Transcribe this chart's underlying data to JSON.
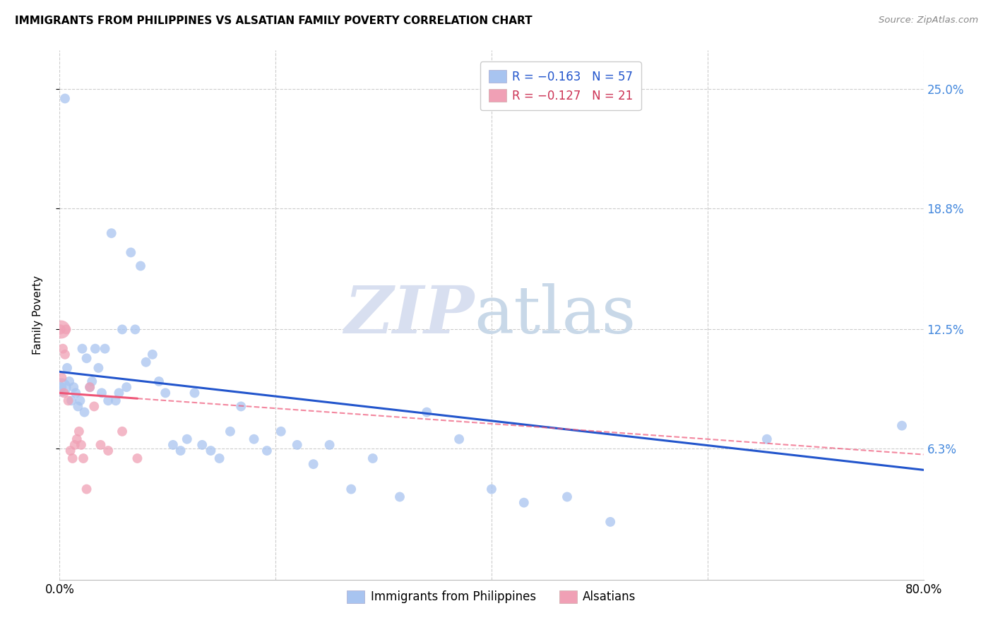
{
  "title": "IMMIGRANTS FROM PHILIPPINES VS ALSATIAN FAMILY POVERTY CORRELATION CHART",
  "source": "Source: ZipAtlas.com",
  "ylabel": "Family Poverty",
  "ytick_labels": [
    "6.3%",
    "12.5%",
    "18.8%",
    "25.0%"
  ],
  "ytick_values": [
    0.063,
    0.125,
    0.188,
    0.25
  ],
  "xlim": [
    0.0,
    0.8
  ],
  "ylim": [
    -0.005,
    0.27
  ],
  "legend_top_labels": [
    "R = −0.163   N = 57",
    "R = −0.127   N = 21"
  ],
  "legend_bottom_labels": [
    "Immigrants from Philippines",
    "Alsatians"
  ],
  "blue_scatter_color": "#a8c4f0",
  "pink_scatter_color": "#f0a0b5",
  "blue_line_color": "#2255cc",
  "pink_line_color": "#ee5577",
  "blue_line": {
    "x0": 0.0,
    "y0": 0.103,
    "x1": 0.8,
    "y1": 0.052
  },
  "pink_line": {
    "x0": 0.0,
    "y0": 0.092,
    "x1": 0.8,
    "y1": 0.06
  },
  "blue_scatter_x": [
    0.002,
    0.005,
    0.007,
    0.009,
    0.011,
    0.013,
    0.015,
    0.017,
    0.019,
    0.021,
    0.023,
    0.025,
    0.028,
    0.03,
    0.033,
    0.036,
    0.039,
    0.042,
    0.045,
    0.048,
    0.052,
    0.055,
    0.058,
    0.062,
    0.066,
    0.07,
    0.075,
    0.08,
    0.086,
    0.092,
    0.098,
    0.105,
    0.112,
    0.118,
    0.125,
    0.132,
    0.14,
    0.148,
    0.158,
    0.168,
    0.18,
    0.192,
    0.205,
    0.22,
    0.235,
    0.25,
    0.27,
    0.29,
    0.315,
    0.34,
    0.37,
    0.4,
    0.43,
    0.47,
    0.51,
    0.655,
    0.78
  ],
  "blue_scatter_y": [
    0.095,
    0.245,
    0.105,
    0.098,
    0.088,
    0.095,
    0.092,
    0.085,
    0.088,
    0.115,
    0.082,
    0.11,
    0.095,
    0.098,
    0.115,
    0.105,
    0.092,
    0.115,
    0.088,
    0.175,
    0.088,
    0.092,
    0.125,
    0.095,
    0.165,
    0.125,
    0.158,
    0.108,
    0.112,
    0.098,
    0.092,
    0.065,
    0.062,
    0.068,
    0.092,
    0.065,
    0.062,
    0.058,
    0.072,
    0.085,
    0.068,
    0.062,
    0.072,
    0.065,
    0.055,
    0.065,
    0.042,
    0.058,
    0.038,
    0.082,
    0.068,
    0.042,
    0.035,
    0.038,
    0.025,
    0.068,
    0.075
  ],
  "pink_scatter_x": [
    0.001,
    0.002,
    0.003,
    0.004,
    0.005,
    0.006,
    0.008,
    0.01,
    0.012,
    0.014,
    0.016,
    0.018,
    0.02,
    0.022,
    0.025,
    0.028,
    0.032,
    0.038,
    0.045,
    0.058,
    0.072
  ],
  "pink_scatter_y": [
    0.125,
    0.1,
    0.115,
    0.092,
    0.112,
    0.125,
    0.088,
    0.062,
    0.058,
    0.065,
    0.068,
    0.072,
    0.065,
    0.058,
    0.042,
    0.095,
    0.085,
    0.065,
    0.062,
    0.072,
    0.058
  ],
  "pink_scatter_sizes": [
    200,
    80,
    80,
    80,
    80,
    80,
    80,
    80,
    80,
    80,
    80,
    80,
    80,
    80,
    80,
    80,
    80,
    80,
    80,
    80,
    80
  ],
  "blue_scatter_sizes": [
    80,
    80,
    80,
    80,
    80,
    80,
    80,
    80,
    80,
    80,
    80,
    80,
    80,
    80,
    80,
    80,
    80,
    80,
    80,
    80,
    80,
    80,
    80,
    80,
    80,
    80,
    80,
    80,
    80,
    80,
    80,
    80,
    80,
    80,
    80,
    80,
    80,
    80,
    80,
    80,
    80,
    80,
    80,
    80,
    80,
    80,
    80,
    80,
    80,
    80,
    80,
    80,
    80,
    80,
    80,
    80,
    80
  ]
}
